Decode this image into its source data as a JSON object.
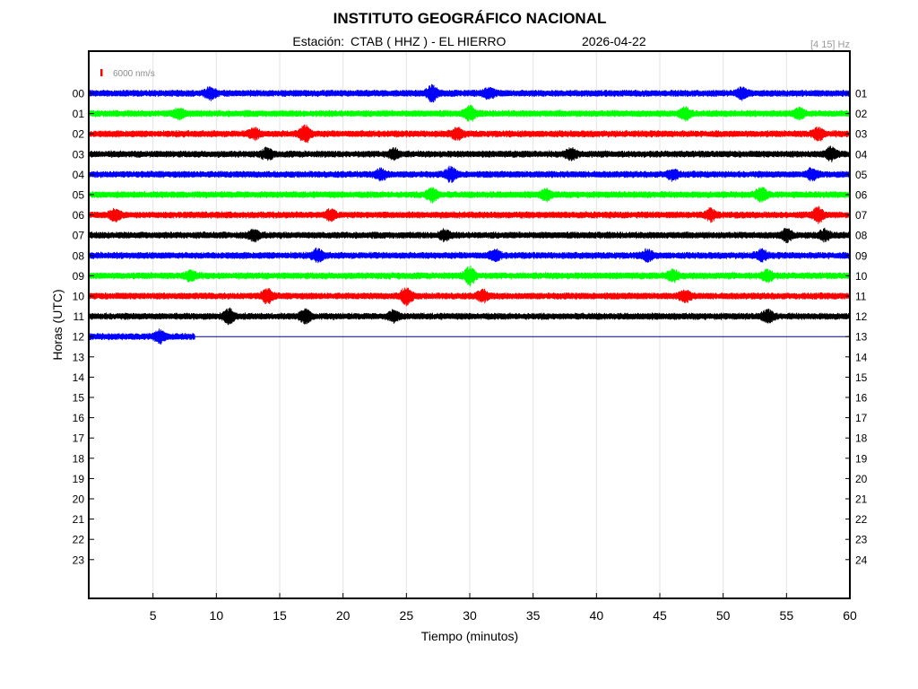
{
  "chart_data": {
    "type": "line",
    "title": "INSTITUTO GEOGRÁFICO NACIONAL",
    "subtitle": {
      "station_label": "Estación:",
      "station": "CTAB ( HHZ ) - EL HIERRO",
      "date": "2026-04-22",
      "band": "[4 15] Hz"
    },
    "scale_label": "6000 nm/s",
    "xlabel": "Tiempo (minutos)",
    "ylabel": "Horas (UTC)",
    "xlim": [
      0,
      60
    ],
    "x_ticks": [
      "5",
      "10",
      "15",
      "20",
      "25",
      "30",
      "35",
      "40",
      "45",
      "50",
      "55",
      "60"
    ],
    "x_tick_values": [
      5,
      10,
      15,
      20,
      25,
      30,
      35,
      40,
      45,
      50,
      55,
      60
    ],
    "left_ticks": [
      "00",
      "01",
      "02",
      "03",
      "04",
      "05",
      "06",
      "07",
      "08",
      "09",
      "10",
      "11",
      "12",
      "13",
      "14",
      "15",
      "16",
      "17",
      "18",
      "19",
      "20",
      "21",
      "22",
      "23"
    ],
    "right_ticks": [
      "01",
      "02",
      "03",
      "04",
      "05",
      "06",
      "07",
      "08",
      "09",
      "10",
      "11",
      "12",
      "13",
      "14",
      "15",
      "16",
      "17",
      "18",
      "19",
      "20",
      "21",
      "22",
      "23",
      "24"
    ],
    "grid": true,
    "series": [
      {
        "hour": "00",
        "color": "#0000ff",
        "end_minute": 60,
        "events": [
          [
            9.5,
            1.6
          ],
          [
            27,
            2.2
          ],
          [
            31.5,
            1.4
          ],
          [
            51.5,
            1.6
          ]
        ]
      },
      {
        "hour": "01",
        "color": "#00ff00",
        "end_minute": 60,
        "events": [
          [
            7,
            1.4
          ],
          [
            30,
            2.0
          ],
          [
            47,
            1.6
          ],
          [
            56,
            1.4
          ]
        ]
      },
      {
        "hour": "02",
        "color": "#ff0000",
        "end_minute": 60,
        "events": [
          [
            17,
            2.4
          ],
          [
            13,
            1.4
          ],
          [
            29,
            1.5
          ],
          [
            57.5,
            1.7
          ]
        ]
      },
      {
        "hour": "03",
        "color": "#000000",
        "end_minute": 60,
        "events": [
          [
            14,
            1.5
          ],
          [
            24,
            1.4
          ],
          [
            38,
            1.4
          ],
          [
            58.5,
            1.8
          ]
        ]
      },
      {
        "hour": "04",
        "color": "#0000ff",
        "end_minute": 60,
        "events": [
          [
            23,
            1.5
          ],
          [
            28.5,
            2.0
          ],
          [
            46,
            1.4
          ],
          [
            57,
            1.5
          ]
        ]
      },
      {
        "hour": "05",
        "color": "#00ff00",
        "end_minute": 60,
        "events": [
          [
            27,
            2.0
          ],
          [
            36,
            1.4
          ],
          [
            53,
            2.0
          ]
        ]
      },
      {
        "hour": "06",
        "color": "#ff0000",
        "end_minute": 60,
        "events": [
          [
            2,
            1.6
          ],
          [
            19,
            1.4
          ],
          [
            49,
            1.6
          ],
          [
            57.5,
            2.0
          ]
        ]
      },
      {
        "hour": "07",
        "color": "#000000",
        "end_minute": 60,
        "events": [
          [
            13,
            1.5
          ],
          [
            28,
            1.4
          ],
          [
            55,
            1.6
          ],
          [
            58,
            1.5
          ]
        ]
      },
      {
        "hour": "08",
        "color": "#0000ff",
        "end_minute": 60,
        "events": [
          [
            18,
            1.7
          ],
          [
            32,
            1.4
          ],
          [
            44,
            1.5
          ],
          [
            53,
            1.5
          ]
        ]
      },
      {
        "hour": "09",
        "color": "#00ff00",
        "end_minute": 60,
        "events": [
          [
            8,
            1.4
          ],
          [
            30,
            2.6
          ],
          [
            46,
            1.6
          ],
          [
            53.5,
            1.6
          ]
        ]
      },
      {
        "hour": "10",
        "color": "#ff0000",
        "end_minute": 60,
        "events": [
          [
            14,
            2.0
          ],
          [
            25,
            2.6
          ],
          [
            31,
            1.6
          ],
          [
            47,
            1.5
          ]
        ]
      },
      {
        "hour": "11",
        "color": "#000000",
        "end_minute": 60,
        "events": [
          [
            11,
            2.0
          ],
          [
            17,
            1.9
          ],
          [
            24,
            1.4
          ],
          [
            53.5,
            1.7
          ]
        ]
      },
      {
        "hour": "12",
        "color": "#0000ff",
        "end_minute": 8.3,
        "events": [
          [
            5.5,
            1.6
          ]
        ]
      }
    ]
  }
}
